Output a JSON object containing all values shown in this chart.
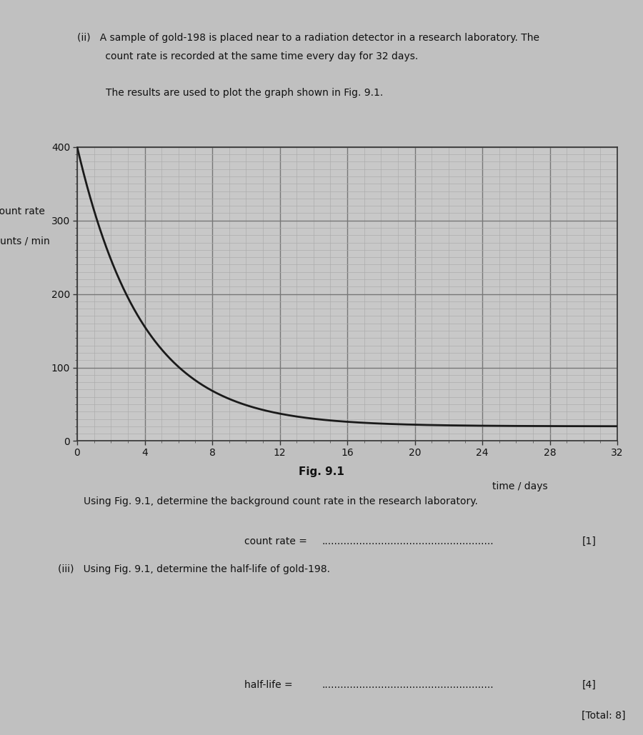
{
  "ylabel_line1": "count rate",
  "ylabel_line2": "counts / min",
  "xlabel": "time / days",
  "xlim": [
    0,
    32
  ],
  "ylim": [
    0,
    400
  ],
  "xticks": [
    0,
    4,
    8,
    12,
    16,
    20,
    24,
    28,
    32
  ],
  "yticks": [
    0,
    100,
    200,
    300,
    400
  ],
  "minor_x_step": 1,
  "minor_y_step": 10,
  "background": 20,
  "initial_count": 400,
  "half_life": 2.69,
  "curve_color": "#1a1a1a",
  "grid_major_color": "#777777",
  "grid_minor_color": "#aaaaaa",
  "plot_bg_color": "#c8c8c8",
  "page_bg_color": "#c0c0c0",
  "text_color": "#111111",
  "fig_label": "Fig. 9.1",
  "question_ii_1": "(ii)   A sample of gold-198 is placed near to a radiation detector in a research laboratory. The",
  "question_ii_2": "         count rate is recorded at the same time every day for 32 days.",
  "question_results": "The results are used to plot the graph shown in Fig. 9.1.",
  "question_bg": "Using Fig. 9.1, determine the background count rate in the research laboratory.",
  "question_count_rate": "count rate = ",
  "question_mark_1": "[1]",
  "question_iii": "(iii)   Using Fig. 9.1, determine the half-life of gold-198.",
  "question_halflife": "half-life = ",
  "question_mark_4": "[4]",
  "question_total": "[Total: 8]"
}
